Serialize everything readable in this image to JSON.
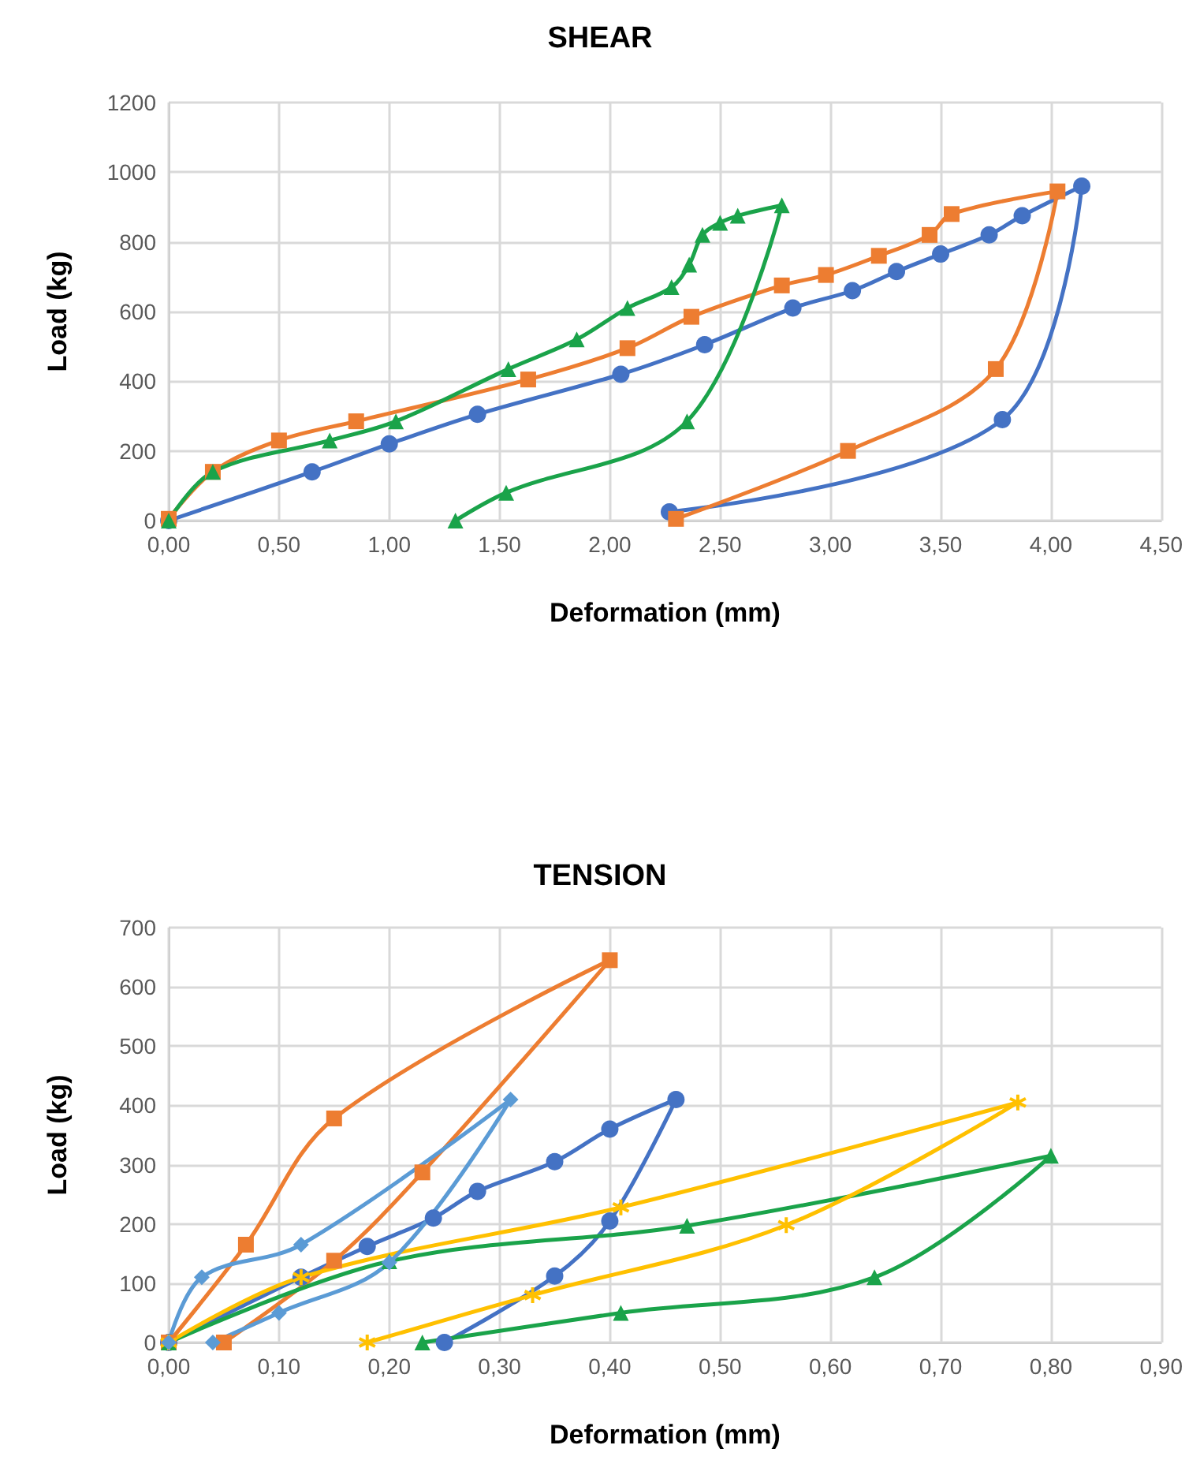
{
  "chart_data": [
    {
      "type": "line",
      "title": "SHEAR",
      "xlabel": "Deformation (mm)",
      "ylabel": "Load (kg)",
      "xlim": [
        0,
        4.5
      ],
      "ylim": [
        0,
        1200
      ],
      "xticks": [
        {
          "value": 0,
          "label": "0,00"
        },
        {
          "value": 0.5,
          "label": "0,50"
        },
        {
          "value": 1,
          "label": "1,00"
        },
        {
          "value": 1.5,
          "label": "1,50"
        },
        {
          "value": 2,
          "label": "2,00"
        },
        {
          "value": 2.5,
          "label": "2,50"
        },
        {
          "value": 3,
          "label": "3,00"
        },
        {
          "value": 3.5,
          "label": "3,50"
        },
        {
          "value": 4,
          "label": "4,00"
        },
        {
          "value": 4.5,
          "label": "4,50"
        }
      ],
      "yticks": [
        0,
        200,
        400,
        600,
        800,
        1000,
        1200
      ],
      "grid": true,
      "series": [
        {
          "color": "#4472c4",
          "marker": "circle",
          "x": [
            0,
            0.65,
            1.0,
            1.4,
            2.05,
            2.43,
            2.83,
            3.1,
            3.3,
            3.5,
            3.72,
            3.87,
            4.14,
            3.78,
            2.27
          ],
          "values": [
            0,
            140,
            220,
            305,
            420,
            505,
            610,
            660,
            715,
            765,
            820,
            875,
            960,
            290,
            25
          ]
        },
        {
          "color": "#ed7d31",
          "marker": "square",
          "x": [
            0,
            0.2,
            0.5,
            0.85,
            1.63,
            2.08,
            2.37,
            2.78,
            2.98,
            3.22,
            3.45,
            3.55,
            4.03,
            3.75,
            3.08,
            2.3
          ],
          "values": [
            5,
            140,
            230,
            285,
            405,
            495,
            585,
            675,
            705,
            760,
            820,
            880,
            945,
            435,
            200,
            5
          ]
        },
        {
          "color": "#1aa34a",
          "marker": "triangle",
          "x": [
            0,
            0.2,
            0.73,
            1.03,
            1.54,
            1.85,
            2.08,
            2.28,
            2.36,
            2.42,
            2.5,
            2.58,
            2.78,
            2.35,
            1.53,
            1.3
          ],
          "values": [
            0,
            140,
            230,
            285,
            435,
            520,
            610,
            670,
            735,
            820,
            855,
            875,
            905,
            285,
            80,
            0
          ]
        }
      ]
    },
    {
      "type": "line",
      "title": "TENSION",
      "xlabel": "Deformation (mm)",
      "ylabel": "Load (kg)",
      "xlim": [
        0,
        0.9
      ],
      "ylim": [
        0,
        700
      ],
      "xticks": [
        {
          "value": 0,
          "label": "0,00"
        },
        {
          "value": 0.1,
          "label": "0,10"
        },
        {
          "value": 0.2,
          "label": "0,20"
        },
        {
          "value": 0.3,
          "label": "0,30"
        },
        {
          "value": 0.4,
          "label": "0,40"
        },
        {
          "value": 0.5,
          "label": "0,50"
        },
        {
          "value": 0.6,
          "label": "0,60"
        },
        {
          "value": 0.7,
          "label": "0,70"
        },
        {
          "value": 0.8,
          "label": "0,80"
        },
        {
          "value": 0.9,
          "label": "0,90"
        }
      ],
      "yticks": [
        0,
        100,
        200,
        300,
        400,
        500,
        600,
        700
      ],
      "grid": true,
      "series": [
        {
          "color": "#4472c4",
          "marker": "circle",
          "x": [
            0,
            0.12,
            0.18,
            0.24,
            0.28,
            0.35,
            0.4,
            0.46,
            0.4,
            0.35,
            0.25
          ],
          "values": [
            0,
            110,
            162,
            210,
            255,
            305,
            360,
            410,
            205,
            112,
            0
          ]
        },
        {
          "color": "#ed7d31",
          "marker": "square",
          "x": [
            0,
            0.07,
            0.15,
            0.4,
            0.23,
            0.15,
            0.05
          ],
          "values": [
            0,
            165,
            378,
            645,
            287,
            138,
            0
          ]
        },
        {
          "color": "#1aa34a",
          "marker": "triangle",
          "x": [
            0,
            0.2,
            0.47,
            0.8,
            0.64,
            0.41,
            0.23
          ],
          "values": [
            0,
            137,
            197,
            315,
            110,
            50,
            0
          ]
        },
        {
          "color": "#ffc000",
          "marker": "cross",
          "x": [
            0,
            0.12,
            0.41,
            0.77,
            0.56,
            0.33,
            0.18
          ],
          "values": [
            0,
            110,
            228,
            405,
            198,
            80,
            0
          ]
        },
        {
          "color": "#5b9bd5",
          "marker": "diamond",
          "x": [
            0,
            0.03,
            0.12,
            0.31,
            0.2,
            0.1,
            0.04
          ],
          "values": [
            0,
            110,
            165,
            410,
            135,
            50,
            0
          ]
        }
      ]
    }
  ]
}
